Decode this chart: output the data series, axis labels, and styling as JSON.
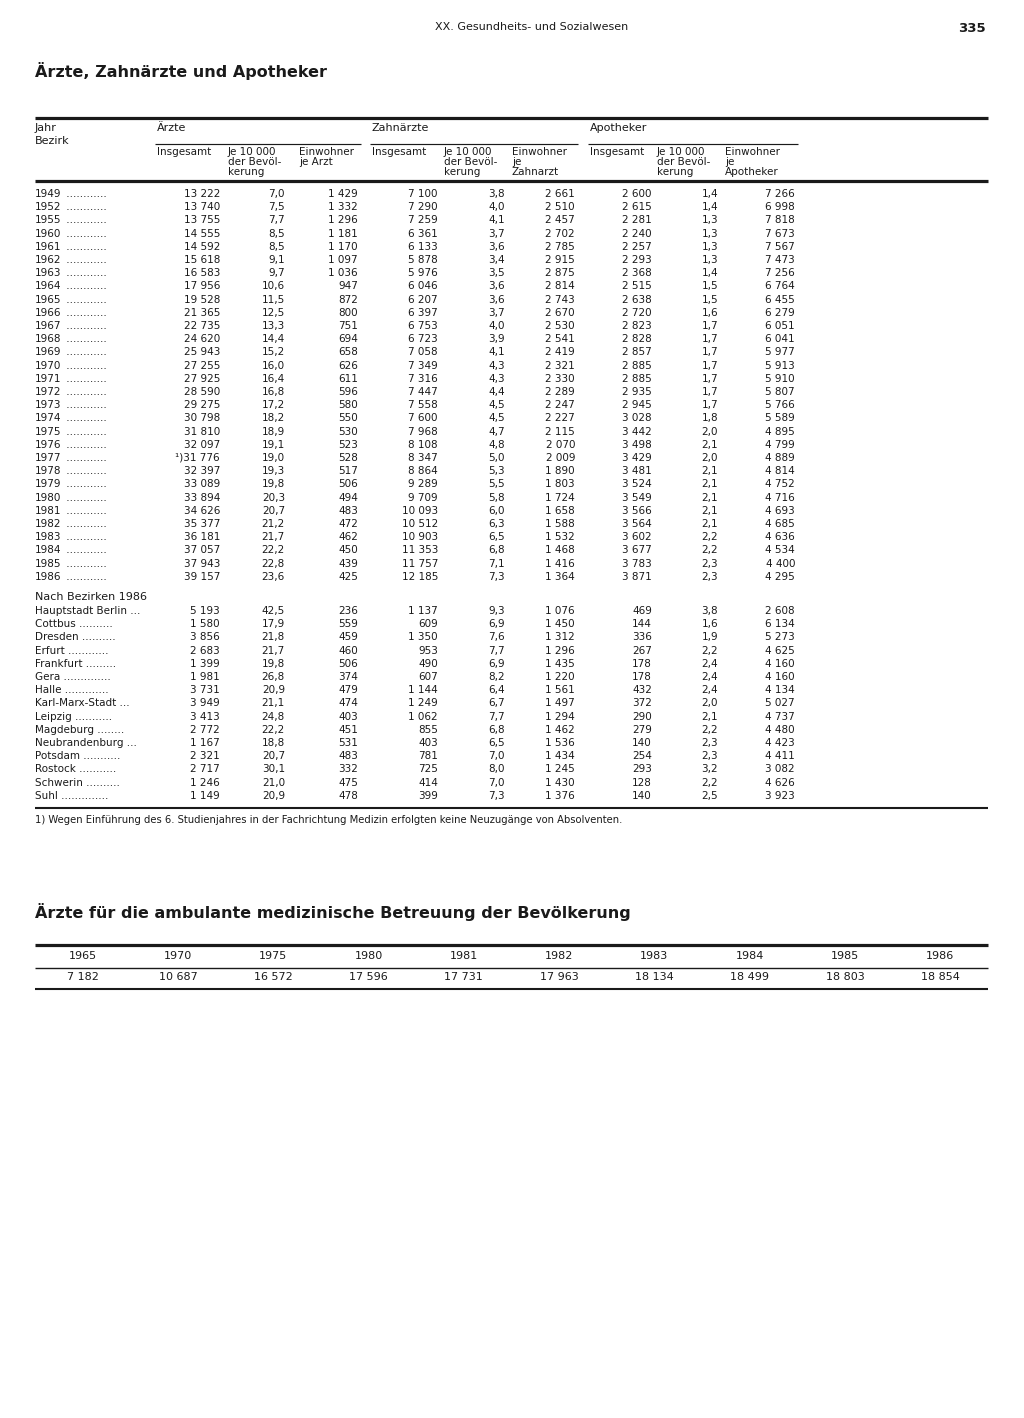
{
  "page_header": "XX. Gesundheits- und Sozialwesen",
  "page_number": "335",
  "title1": "Ärzte, Zahnärzte und Apotheker",
  "title2": "Ärzte für die ambulante medizinische Betreuung der Bevölkerung",
  "footnote": "1) Wegen Einführung des 6. Studienjahres in der Fachrichtung Medizin erfolgten keine Neuzugänge von Absolventen.",
  "main_data": [
    [
      "1949",
      "13 222",
      "7,0",
      "1 429",
      "7 100",
      "3,8",
      "2 661",
      "2 600",
      "1,4",
      "7 266"
    ],
    [
      "1952",
      "13 740",
      "7,5",
      "1 332",
      "7 290",
      "4,0",
      "2 510",
      "2 615",
      "1,4",
      "6 998"
    ],
    [
      "1955",
      "13 755",
      "7,7",
      "1 296",
      "7 259",
      "4,1",
      "2 457",
      "2 281",
      "1,3",
      "7 818"
    ],
    [
      "1960",
      "14 555",
      "8,5",
      "1 181",
      "6 361",
      "3,7",
      "2 702",
      "2 240",
      "1,3",
      "7 673"
    ],
    [
      "1961",
      "14 592",
      "8,5",
      "1 170",
      "6 133",
      "3,6",
      "2 785",
      "2 257",
      "1,3",
      "7 567"
    ],
    [
      "1962",
      "15 618",
      "9,1",
      "1 097",
      "5 878",
      "3,4",
      "2 915",
      "2 293",
      "1,3",
      "7 473"
    ],
    [
      "1963",
      "16 583",
      "9,7",
      "1 036",
      "5 976",
      "3,5",
      "2 875",
      "2 368",
      "1,4",
      "7 256"
    ],
    [
      "1964",
      "17 956",
      "10,6",
      "947",
      "6 046",
      "3,6",
      "2 814",
      "2 515",
      "1,5",
      "6 764"
    ],
    [
      "1965",
      "19 528",
      "11,5",
      "872",
      "6 207",
      "3,6",
      "2 743",
      "2 638",
      "1,5",
      "6 455"
    ],
    [
      "1966",
      "21 365",
      "12,5",
      "800",
      "6 397",
      "3,7",
      "2 670",
      "2 720",
      "1,6",
      "6 279"
    ],
    [
      "1967",
      "22 735",
      "13,3",
      "751",
      "6 753",
      "4,0",
      "2 530",
      "2 823",
      "1,7",
      "6 051"
    ],
    [
      "1968",
      "24 620",
      "14,4",
      "694",
      "6 723",
      "3,9",
      "2 541",
      "2 828",
      "1,7",
      "6 041"
    ],
    [
      "1969",
      "25 943",
      "15,2",
      "658",
      "7 058",
      "4,1",
      "2 419",
      "2 857",
      "1,7",
      "5 977"
    ],
    [
      "1970",
      "27 255",
      "16,0",
      "626",
      "7 349",
      "4,3",
      "2 321",
      "2 885",
      "1,7",
      "5 913"
    ],
    [
      "1971",
      "27 925",
      "16,4",
      "611",
      "7 316",
      "4,3",
      "2 330",
      "2 885",
      "1,7",
      "5 910"
    ],
    [
      "1972",
      "28 590",
      "16,8",
      "596",
      "7 447",
      "4,4",
      "2 289",
      "2 935",
      "1,7",
      "5 807"
    ],
    [
      "1973",
      "29 275",
      "17,2",
      "580",
      "7 558",
      "4,5",
      "2 247",
      "2 945",
      "1,7",
      "5 766"
    ],
    [
      "1974",
      "30 798",
      "18,2",
      "550",
      "7 600",
      "4,5",
      "2 227",
      "3 028",
      "1,8",
      "5 589"
    ],
    [
      "1975",
      "31 810",
      "18,9",
      "530",
      "7 968",
      "4,7",
      "2 115",
      "3 442",
      "2,0",
      "4 895"
    ],
    [
      "1976",
      "32 097",
      "19,1",
      "523",
      "8 108",
      "4,8",
      "2 070",
      "3 498",
      "2,1",
      "4 799"
    ],
    [
      "1977",
      "¹)31 776",
      "19,0",
      "528",
      "8 347",
      "5,0",
      "2 009",
      "3 429",
      "2,0",
      "4 889"
    ],
    [
      "1978",
      "32 397",
      "19,3",
      "517",
      "8 864",
      "5,3",
      "1 890",
      "3 481",
      "2,1",
      "4 814"
    ],
    [
      "1979",
      "33 089",
      "19,8",
      "506",
      "9 289",
      "5,5",
      "1 803",
      "3 524",
      "2,1",
      "4 752"
    ],
    [
      "1980",
      "33 894",
      "20,3",
      "494",
      "9 709",
      "5,8",
      "1 724",
      "3 549",
      "2,1",
      "4 716"
    ],
    [
      "1981",
      "34 626",
      "20,7",
      "483",
      "10 093",
      "6,0",
      "1 658",
      "3 566",
      "2,1",
      "4 693"
    ],
    [
      "1982",
      "35 377",
      "21,2",
      "472",
      "10 512",
      "6,3",
      "1 588",
      "3 564",
      "2,1",
      "4 685"
    ],
    [
      "1983",
      "36 181",
      "21,7",
      "462",
      "10 903",
      "6,5",
      "1 532",
      "3 602",
      "2,2",
      "4 636"
    ],
    [
      "1984",
      "37 057",
      "22,2",
      "450",
      "11 353",
      "6,8",
      "1 468",
      "3 677",
      "2,2",
      "4 534"
    ],
    [
      "1985",
      "37 943",
      "22,8",
      "439",
      "11 757",
      "7,1",
      "1 416",
      "3 783",
      "2,3",
      "4 400"
    ],
    [
      "1986",
      "39 157",
      "23,6",
      "425",
      "12 185",
      "7,3",
      "1 364",
      "3 871",
      "2,3",
      "4 295"
    ]
  ],
  "bezirk_header": "Nach Bezirken 1986",
  "bezirk_data": [
    [
      "Hauptstadt Berlin ...",
      "5 193",
      "42,5",
      "236",
      "1 137",
      "9,3",
      "1 076",
      "469",
      "3,8",
      "2 608"
    ],
    [
      "Cottbus ..........",
      "1 580",
      "17,9",
      "559",
      "609",
      "6,9",
      "1 450",
      "144",
      "1,6",
      "6 134"
    ],
    [
      "Dresden ..........",
      "3 856",
      "21,8",
      "459",
      "1 350",
      "7,6",
      "1 312",
      "336",
      "1,9",
      "5 273"
    ],
    [
      "Erfurt ............",
      "2 683",
      "21,7",
      "460",
      "953",
      "7,7",
      "1 296",
      "267",
      "2,2",
      "4 625"
    ],
    [
      "Frankfurt .........",
      "1 399",
      "19,8",
      "506",
      "490",
      "6,9",
      "1 435",
      "178",
      "2,4",
      "4 160"
    ],
    [
      "Gera ..............",
      "1 981",
      "26,8",
      "374",
      "607",
      "8,2",
      "1 220",
      "178",
      "2,4",
      "4 160"
    ],
    [
      "Halle .............",
      "3 731",
      "20,9",
      "479",
      "1 144",
      "6,4",
      "1 561",
      "432",
      "2,4",
      "4 134"
    ],
    [
      "Karl-Marx-Stadt ...",
      "3 949",
      "21,1",
      "474",
      "1 249",
      "6,7",
      "1 497",
      "372",
      "2,0",
      "5 027"
    ],
    [
      "Leipzig ...........",
      "3 413",
      "24,8",
      "403",
      "1 062",
      "7,7",
      "1 294",
      "290",
      "2,1",
      "4 737"
    ],
    [
      "Magdeburg ........",
      "2 772",
      "22,2",
      "451",
      "855",
      "6,8",
      "1 462",
      "279",
      "2,2",
      "4 480"
    ],
    [
      "Neubrandenburg ...",
      "1 167",
      "18,8",
      "531",
      "403",
      "6,5",
      "1 536",
      "140",
      "2,3",
      "4 423"
    ],
    [
      "Potsdam ...........",
      "2 321",
      "20,7",
      "483",
      "781",
      "7,0",
      "1 434",
      "254",
      "2,3",
      "4 411"
    ],
    [
      "Rostock ...........",
      "2 717",
      "30,1",
      "332",
      "725",
      "8,0",
      "1 245",
      "293",
      "3,2",
      "3 082"
    ],
    [
      "Schwerin ..........",
      "1 246",
      "21,0",
      "475",
      "414",
      "7,0",
      "1 430",
      "128",
      "2,2",
      "4 626"
    ],
    [
      "Suhl ..............",
      "1 149",
      "20,9",
      "478",
      "399",
      "7,3",
      "1 376",
      "140",
      "2,5",
      "3 923"
    ]
  ],
  "table2_years": [
    "1965",
    "1970",
    "1975",
    "1980",
    "1981",
    "1982",
    "1983",
    "1984",
    "1985",
    "1986"
  ],
  "table2_values": [
    "7 182",
    "10 687",
    "16 572",
    "17 596",
    "17 731",
    "17 963",
    "18 134",
    "18 499",
    "18 803",
    "18 854"
  ]
}
